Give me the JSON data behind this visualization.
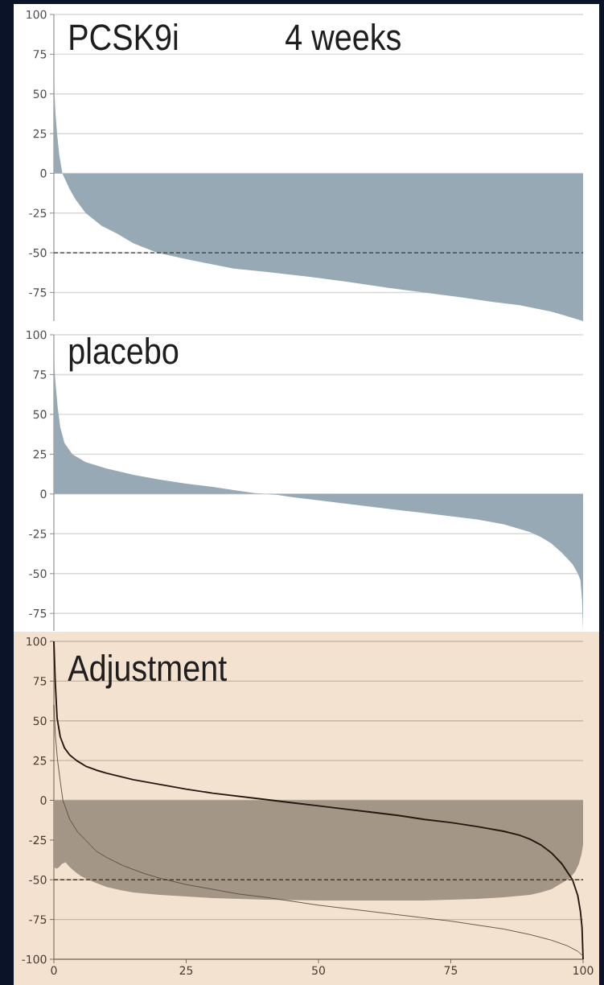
{
  "chart_data": [
    {
      "type": "area",
      "title": "PCSK9i",
      "annotations": [
        "4 weeks"
      ],
      "xlim": [
        0,
        100
      ],
      "ylim": [
        -93,
        100
      ],
      "yticks": [
        -75,
        -50,
        -25,
        0,
        25,
        50,
        75,
        100
      ],
      "tick_labels": "y",
      "grid": "y",
      "ref_lines": [
        {
          "axis": "y",
          "value": -50,
          "line_style": "dashed",
          "color": "#3a3a3a"
        }
      ],
      "series": [
        {
          "color": "#96a9b5",
          "x": [
            0,
            0.3,
            0.6,
            1,
            1.6,
            3,
            4,
            6,
            9,
            12,
            15,
            19.5,
            25,
            34,
            40,
            48,
            55,
            63,
            70,
            77,
            83,
            88,
            91,
            94,
            96,
            98,
            99,
            100
          ],
          "values": [
            58,
            38,
            25,
            12,
            0,
            -10,
            -16,
            -25,
            -33,
            -38,
            -44,
            -50,
            -54,
            -60,
            -62,
            -65,
            -68,
            -72,
            -75,
            -78,
            -81,
            -83,
            -85,
            -87,
            -89,
            -91,
            -92,
            -93
          ]
        }
      ]
    },
    {
      "type": "area",
      "title": "placebo",
      "xlim": [
        0,
        100
      ],
      "ylim": [
        -86,
        100
      ],
      "yticks": [
        -75,
        -50,
        -25,
        0,
        25,
        50,
        75,
        100
      ],
      "tick_labels": "y",
      "grid": "y",
      "series": [
        {
          "color": "#96a9b5",
          "x": [
            0,
            0.3,
            0.7,
            1.2,
            2,
            3.5,
            6,
            10,
            15,
            20,
            25,
            30,
            35,
            38,
            40,
            42,
            45,
            50,
            55,
            60,
            65,
            70,
            75,
            80,
            85,
            88,
            90,
            92,
            94,
            96,
            98,
            99,
            99.5,
            99.8,
            100
          ],
          "values": [
            85,
            70,
            55,
            42,
            32,
            25,
            20,
            16,
            12,
            9,
            6.5,
            4.5,
            2,
            0.5,
            0,
            -0.5,
            -2,
            -4,
            -6,
            -8,
            -10,
            -12,
            -14,
            -16,
            -19,
            -22,
            -24,
            -27,
            -31,
            -37,
            -44,
            -50,
            -54,
            -66,
            -86
          ]
        }
      ]
    },
    {
      "type": "area",
      "title": "Adjustment",
      "xlim": [
        0,
        100
      ],
      "ylim": [
        -100,
        100
      ],
      "xticks": [
        0,
        25,
        50,
        75,
        100
      ],
      "yticks": [
        -100,
        -75,
        -50,
        -25,
        0,
        25,
        50,
        75,
        100
      ],
      "grid": "y",
      "ref_lines": [
        {
          "axis": "y",
          "value": -50,
          "line_style": "dashed",
          "color": "#4a3a2e"
        }
      ],
      "series": [
        {
          "type": "area",
          "color": "#a49686",
          "x": [
            0,
            0.5,
            1,
            1.5,
            2.2,
            3,
            4,
            5,
            6.5,
            8,
            10,
            12.5,
            15,
            20,
            25,
            30,
            40,
            50,
            60,
            70,
            80,
            85,
            90,
            92,
            94,
            96,
            97.5,
            98.5,
            99.2,
            99.7,
            100
          ],
          "values": [
            -42,
            -43,
            -42,
            -40,
            -39,
            -42,
            -45,
            -47.5,
            -50,
            -52,
            -54.5,
            -56.5,
            -58,
            -59.5,
            -60.5,
            -61.5,
            -62.5,
            -63,
            -63,
            -63,
            -62,
            -61,
            -59.5,
            -58,
            -56,
            -52,
            -49,
            -45,
            -40,
            -34,
            -28
          ]
        },
        {
          "type": "line",
          "color": "#241810",
          "x": [
            0,
            0.25,
            0.6,
            1.2,
            2,
            3,
            4.3,
            6,
            8,
            10,
            15,
            20,
            25,
            30,
            35,
            40,
            45,
            50,
            55,
            60,
            65,
            70,
            75,
            80,
            85,
            88,
            90,
            92,
            94,
            96,
            97,
            98,
            99,
            99.5,
            99.8,
            100
          ],
          "values": [
            100,
            75,
            52,
            40,
            33,
            28.5,
            25,
            21.5,
            19,
            17,
            13,
            10,
            7,
            4.5,
            2.5,
            0.5,
            -1.5,
            -3.5,
            -5.5,
            -7.5,
            -9.5,
            -12,
            -14,
            -16.5,
            -19.5,
            -22,
            -24.5,
            -28,
            -33,
            -40,
            -45,
            -50,
            -60,
            -70,
            -80,
            -100
          ]
        },
        {
          "type": "line",
          "color": "#5a4a3e",
          "x": [
            0,
            0.3,
            0.7,
            1.2,
            1.7,
            3,
            4.5,
            6,
            8,
            10,
            13,
            17,
            20,
            25,
            30,
            35,
            40,
            45,
            50,
            55,
            60,
            65,
            70,
            75,
            80,
            85,
            90,
            94,
            97,
            99,
            100
          ],
          "values": [
            60,
            40,
            25,
            12,
            0,
            -12,
            -20,
            -25,
            -32,
            -36,
            -41,
            -46,
            -49,
            -53,
            -56,
            -59,
            -61,
            -63.5,
            -66,
            -68,
            -70,
            -72,
            -74,
            -76,
            -78.5,
            -81,
            -84.5,
            -88,
            -91.5,
            -95,
            -98
          ]
        }
      ]
    }
  ]
}
